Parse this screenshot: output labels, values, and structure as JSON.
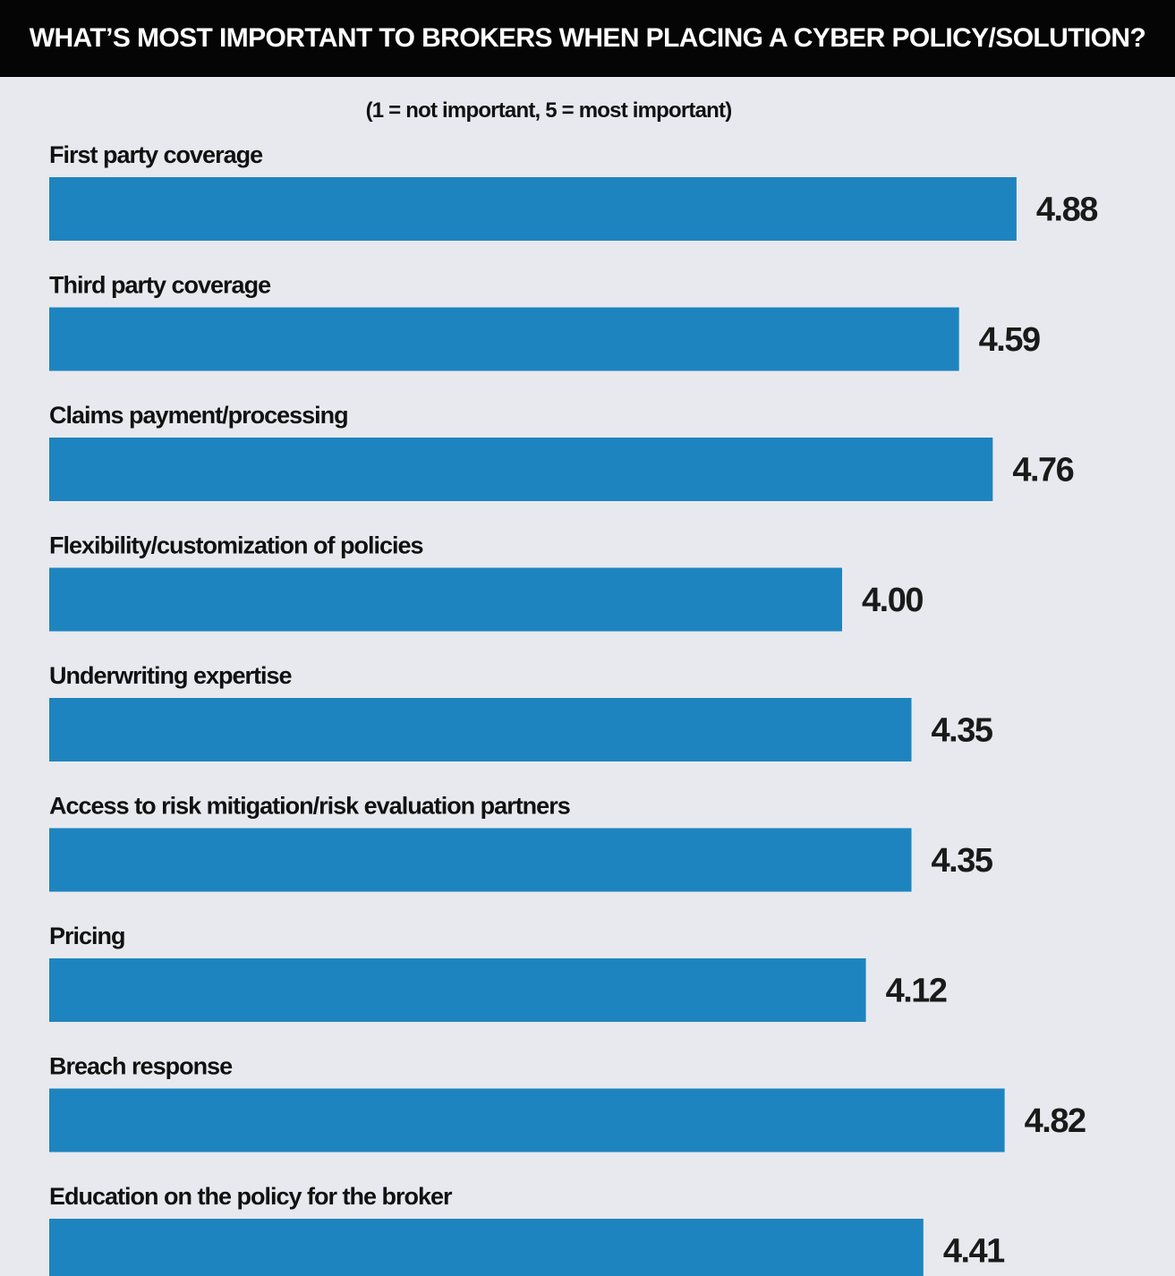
{
  "title": "WHAT’S MOST IMPORTANT TO BROKERS WHEN PLACING A CYBER POLICY/SOLUTION?",
  "subtitle": "(1 = not important, 5 = most important)",
  "colors": {
    "bar": "#1e84bf",
    "background": "#e8e9ee",
    "title_bar": "#050505"
  },
  "chart_data": {
    "type": "bar",
    "orientation": "horizontal",
    "title": "WHAT’S MOST IMPORTANT TO BROKERS WHEN PLACING A CYBER POLICY/SOLUTION?",
    "subtitle": "(1 = not important, 5 = most important)",
    "categories": [
      "First party coverage",
      "Third party coverage",
      "Claims payment/processing",
      "Flexibility/customization of policies",
      "Underwriting expertise",
      "Access to risk mitigation/risk evaluation partners",
      "Pricing",
      "Breach response",
      "Education on the policy for the broker"
    ],
    "values": [
      4.88,
      4.59,
      4.76,
      4.0,
      4.35,
      4.35,
      4.12,
      4.82,
      4.41
    ],
    "value_labels": [
      "4.88",
      "4.59",
      "4.76",
      "4.00",
      "4.35",
      "4.35",
      "4.12",
      "4.82",
      "4.41"
    ],
    "xlim": [
      0,
      5
    ],
    "grid": false,
    "legend": "none"
  }
}
